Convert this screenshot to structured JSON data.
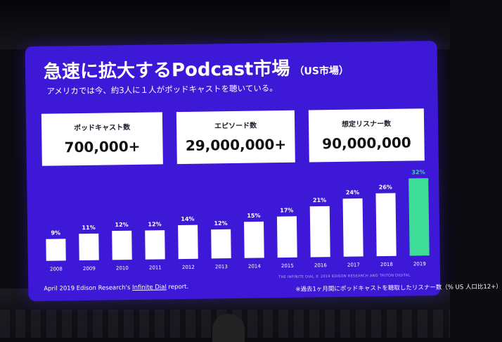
{
  "slide": {
    "title_main": "急速に拡大するPodcast市場",
    "title_sub": "（US市場）",
    "subtitle": "アメリカでは今、約3人に１人がポッドキャストを聴いている。",
    "source_prefix": "April  2019 Edison Research's ",
    "source_title": "Infinite Dial",
    "source_suffix": " report.",
    "footnote": "※過去1ヶ月間にポッドキャストを聴取したリスナー数（% US 人口比12+）",
    "credit": "THE INFINITE DIAL  © 2019 EDISON RESEARCH AND TRITON DIGITAL"
  },
  "stats": [
    {
      "label": "ポッドキャスト数",
      "value": "700,000+"
    },
    {
      "label": "エピソード数",
      "value": "29,000,000+"
    },
    {
      "label": "想定リスナー数",
      "value": "90,000,000"
    }
  ],
  "colors": {
    "slide_bg": "#3d18d6",
    "bar_default": "#ffffff",
    "bar_highlight": "#3ddc97"
  },
  "chart_data": {
    "type": "bar",
    "categories": [
      "2008",
      "2009",
      "2010",
      "2011",
      "2012",
      "2013",
      "2014",
      "2015",
      "2016",
      "2017",
      "2018",
      "2019"
    ],
    "values": [
      9,
      11,
      12,
      12,
      14,
      12,
      15,
      17,
      21,
      24,
      26,
      32
    ],
    "data_labels": [
      "9%",
      "11%",
      "12%",
      "12%",
      "14%",
      "12%",
      "15%",
      "17%",
      "21%",
      "24%",
      "26%",
      "32%"
    ],
    "highlight_index": 11,
    "ylim": [
      0,
      32
    ],
    "grid": false
  }
}
